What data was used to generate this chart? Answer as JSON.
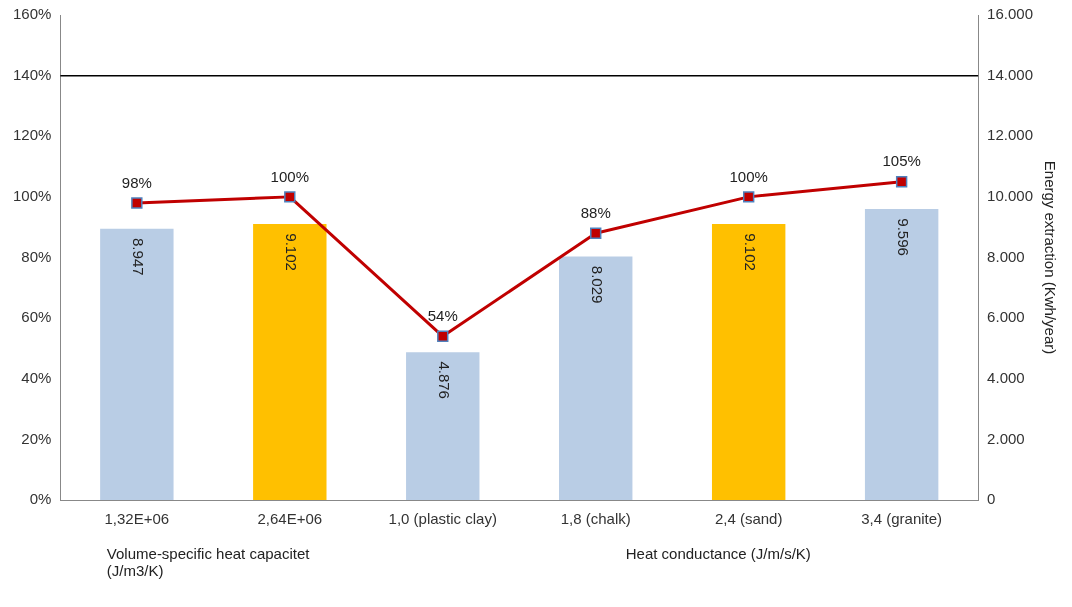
{
  "chart_data": {
    "type": "bar",
    "categories": [
      "1,32E+06",
      "2,64E+06",
      "1,0 (plastic clay)",
      "1,8 (chalk)",
      "2,4 (sand)",
      "3,4 (granite)"
    ],
    "series": [
      {
        "axis": "y2",
        "colors": [
          "#b9cde5",
          "#ffc000",
          "#b9cde5",
          "#b9cde5",
          "#ffc000",
          "#b9cde5"
        ],
        "values": [
          8947,
          9102,
          4876,
          8029,
          9102,
          9596
        ],
        "value_labels": [
          "8.947",
          "9.102",
          "4.876",
          "8.029",
          "9.102",
          "9.596"
        ]
      },
      {
        "type": "line",
        "axis": "y",
        "color": "#c00000",
        "marker": "square",
        "values": [
          98,
          100,
          54,
          88,
          100,
          105
        ],
        "value_labels": [
          "98%",
          "100%",
          "54%",
          "88%",
          "100%",
          "105%"
        ]
      }
    ],
    "ylim": [
      0,
      160
    ],
    "yticks": [
      {
        "value": 0,
        "label": "0%"
      },
      {
        "value": 20,
        "label": "20%"
      },
      {
        "value": 40,
        "label": "40%"
      },
      {
        "value": 60,
        "label": "60%"
      },
      {
        "value": 80,
        "label": "80%"
      },
      {
        "value": 100,
        "label": "100%"
      },
      {
        "value": 120,
        "label": "120%"
      },
      {
        "value": 140,
        "label": "140%"
      },
      {
        "value": 160,
        "label": "160%"
      }
    ],
    "y2lim": [
      0,
      16000
    ],
    "y2ticks": [
      {
        "value": 0,
        "label": "0"
      },
      {
        "value": 2000,
        "label": "2.000"
      },
      {
        "value": 4000,
        "label": "4.000"
      },
      {
        "value": 6000,
        "label": "6.000"
      },
      {
        "value": 8000,
        "label": "8.000"
      },
      {
        "value": 10000,
        "label": "10.000"
      },
      {
        "value": 12000,
        "label": "12.000"
      },
      {
        "value": 14000,
        "label": "14.000"
      },
      {
        "value": 16000,
        "label": "16.000"
      }
    ],
    "y2label": "Energy extraction (Kwh/year)",
    "ref_lines": [
      {
        "axis": "y",
        "value": 140,
        "color": "#000000"
      }
    ],
    "annotations": [
      "Volume-specific heat capacitet (J/m3/K)",
      "Heat conductance (J/m/s/K)"
    ],
    "grid": false,
    "legend": false
  }
}
